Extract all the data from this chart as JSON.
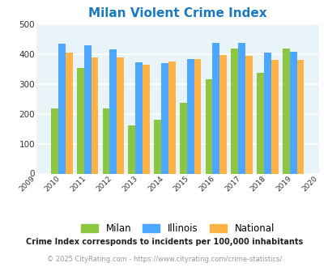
{
  "title": "Milan Violent Crime Index",
  "years": [
    2010,
    2011,
    2012,
    2013,
    2014,
    2015,
    2016,
    2017,
    2018,
    2019
  ],
  "milan": [
    218,
    352,
    218,
    160,
    180,
    237,
    315,
    418,
    338,
    418
  ],
  "illinois": [
    434,
    428,
    415,
    372,
    368,
    382,
    438,
    438,
    404,
    408
  ],
  "national": [
    405,
    387,
    387,
    365,
    375,
    383,
    396,
    394,
    380,
    379
  ],
  "colors": {
    "milan": "#8dc63f",
    "illinois": "#4da6ff",
    "national": "#ffb347"
  },
  "xlim": [
    2009,
    2020
  ],
  "ylim": [
    0,
    500
  ],
  "yticks": [
    0,
    100,
    200,
    300,
    400,
    500
  ],
  "background_color": "#e8f4f8",
  "grid_color": "#ffffff",
  "title_color": "#1a7abf",
  "title_fontsize": 11,
  "legend_labels": [
    "Milan",
    "Illinois",
    "National"
  ],
  "footnote1": "Crime Index corresponds to incidents per 100,000 inhabitants",
  "footnote2": "© 2025 CityRating.com - https://www.cityrating.com/crime-statistics/",
  "bar_width": 0.28
}
